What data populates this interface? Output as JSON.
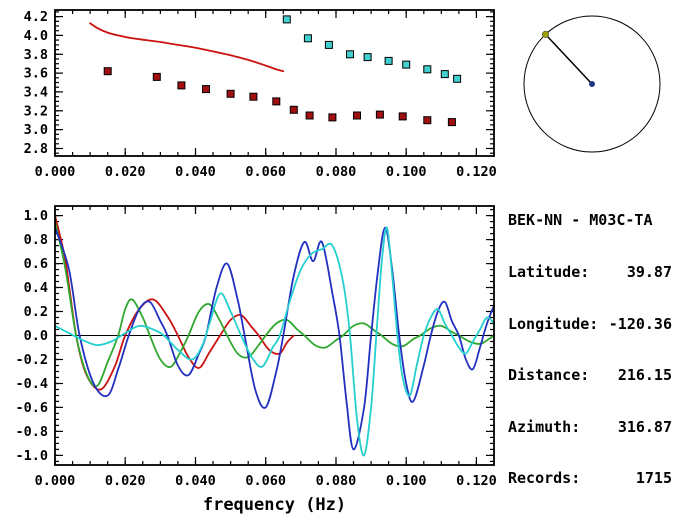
{
  "info": {
    "title": "BEK-NN - M03C-TA",
    "rows": [
      {
        "label": "Latitude:",
        "value": "39.87"
      },
      {
        "label": "Longitude:",
        "value": "-120.36"
      },
      {
        "label": "Distance:",
        "value": "216.15"
      },
      {
        "label": "Azimuth:",
        "value": "316.87"
      },
      {
        "label": "Records:",
        "value": "1715"
      }
    ]
  },
  "azimuth_diagram": {
    "azimuth_deg": 316.87,
    "circle_color": "#000000",
    "line_color": "#000000",
    "center_dot_color": "#223388",
    "edge_dot_color": "#a0a000"
  },
  "chart_data": [
    {
      "id": "dispersion",
      "type": "line",
      "title": "",
      "xlabel": "",
      "ylabel": "",
      "xlim": [
        0,
        0.125
      ],
      "ylim": [
        2.72,
        4.27
      ],
      "minor_x": 0.005,
      "minor_y": 0.05,
      "xticks": {
        "values": [
          0,
          0.02,
          0.04,
          0.06,
          0.08,
          0.1,
          0.12
        ],
        "labels": [
          "0.000",
          "0.020",
          "0.040",
          "0.060",
          "0.080",
          "0.100",
          "0.120"
        ]
      },
      "yticks": {
        "values": [
          4.2,
          4.0,
          3.8,
          3.6,
          3.4,
          3.2,
          3.0,
          2.8
        ],
        "labels": [
          "4.2",
          "4.0",
          "3.8",
          "3.6",
          "3.4",
          "3.2",
          "3.0",
          "2.8"
        ]
      },
      "series": [
        {
          "name": "reference-curve",
          "type": "line",
          "color": "#cc1111",
          "points": [
            [
              0.01,
              4.13
            ],
            [
              0.012,
              4.08
            ],
            [
              0.015,
              4.03
            ],
            [
              0.018,
              4.0
            ],
            [
              0.022,
              3.97
            ],
            [
              0.026,
              3.95
            ],
            [
              0.03,
              3.93
            ],
            [
              0.035,
              3.9
            ],
            [
              0.04,
              3.87
            ],
            [
              0.045,
              3.83
            ],
            [
              0.05,
              3.79
            ],
            [
              0.055,
              3.74
            ],
            [
              0.06,
              3.68
            ],
            [
              0.063,
              3.64
            ],
            [
              0.065,
              3.62
            ]
          ]
        },
        {
          "name": "dark-red-squares",
          "type": "squares",
          "color": "#a01010",
          "points": [
            [
              0.015,
              3.62
            ],
            [
              0.029,
              3.56
            ],
            [
              0.036,
              3.47
            ],
            [
              0.043,
              3.43
            ],
            [
              0.05,
              3.38
            ],
            [
              0.0565,
              3.35
            ],
            [
              0.063,
              3.3
            ],
            [
              0.068,
              3.21
            ],
            [
              0.0725,
              3.15
            ],
            [
              0.079,
              3.13
            ],
            [
              0.086,
              3.15
            ],
            [
              0.0925,
              3.16
            ],
            [
              0.099,
              3.14
            ],
            [
              0.106,
              3.1
            ],
            [
              0.113,
              3.08
            ]
          ]
        },
        {
          "name": "cyan-squares",
          "type": "squares",
          "color": "#40d0d0",
          "points": [
            [
              0.066,
              4.17
            ],
            [
              0.072,
              3.97
            ],
            [
              0.078,
              3.9
            ],
            [
              0.084,
              3.8
            ],
            [
              0.089,
              3.77
            ],
            [
              0.095,
              3.73
            ],
            [
              0.1,
              3.69
            ],
            [
              0.106,
              3.64
            ],
            [
              0.111,
              3.59
            ],
            [
              0.1145,
              3.54
            ]
          ]
        }
      ]
    },
    {
      "id": "waveforms",
      "type": "line",
      "title": "",
      "xlabel": "frequency (Hz)",
      "ylabel": "",
      "zero_line": true,
      "xlim": [
        0,
        0.125
      ],
      "ylim": [
        -1.08,
        1.08
      ],
      "minor_x": 0.005,
      "minor_y": 0.05,
      "xticks": {
        "values": [
          0,
          0.02,
          0.04,
          0.06,
          0.08,
          0.1,
          0.12
        ],
        "labels": [
          "0.000",
          "0.020",
          "0.040",
          "0.060",
          "0.080",
          "0.100",
          "0.120"
        ]
      },
      "yticks": {
        "values": [
          1.0,
          0.8,
          0.6,
          0.4,
          0.2,
          0.0,
          -0.2,
          -0.4,
          -0.6,
          -0.8,
          -1.0
        ],
        "labels": [
          "1.0",
          "0.8",
          "0.6",
          "0.4",
          "0.2",
          "0.0",
          "-0.2",
          "-0.4",
          "-0.6",
          "-0.8",
          "-1.0"
        ]
      },
      "series": [
        {
          "name": "trace-red",
          "type": "line",
          "color": "#cc1111",
          "points": [
            [
              0,
              1.0
            ],
            [
              0.003,
              0.62
            ],
            [
              0.006,
              0.0
            ],
            [
              0.009,
              -0.33
            ],
            [
              0.013,
              -0.45
            ],
            [
              0.017,
              -0.26
            ],
            [
              0.02,
              0.0
            ],
            [
              0.024,
              0.22
            ],
            [
              0.028,
              0.3
            ],
            [
              0.032,
              0.16
            ],
            [
              0.035,
              0.0
            ],
            [
              0.038,
              -0.18
            ],
            [
              0.041,
              -0.27
            ],
            [
              0.044,
              -0.14
            ],
            [
              0.047,
              0.0
            ],
            [
              0.05,
              0.13
            ],
            [
              0.053,
              0.17
            ],
            [
              0.056,
              0.07
            ],
            [
              0.058,
              0.0
            ],
            [
              0.061,
              -0.12
            ],
            [
              0.064,
              -0.15
            ],
            [
              0.066,
              -0.06
            ],
            [
              0.068,
              0.0
            ]
          ]
        },
        {
          "name": "trace-green",
          "type": "line",
          "color": "#2ea82e",
          "points": [
            [
              0,
              0.95
            ],
            [
              0.003,
              0.55
            ],
            [
              0.006,
              0.0
            ],
            [
              0.009,
              -0.32
            ],
            [
              0.012,
              -0.42
            ],
            [
              0.015,
              -0.22
            ],
            [
              0.018,
              0.0
            ],
            [
              0.02,
              0.22
            ],
            [
              0.022,
              0.3
            ],
            [
              0.025,
              0.15
            ],
            [
              0.027,
              0.0
            ],
            [
              0.03,
              -0.2
            ],
            [
              0.033,
              -0.26
            ],
            [
              0.036,
              -0.12
            ],
            [
              0.038,
              0.0
            ],
            [
              0.041,
              0.2
            ],
            [
              0.044,
              0.26
            ],
            [
              0.047,
              0.12
            ],
            [
              0.049,
              0.0
            ],
            [
              0.052,
              -0.15
            ],
            [
              0.055,
              -0.18
            ],
            [
              0.058,
              -0.08
            ],
            [
              0.06,
              0.0
            ],
            [
              0.063,
              0.1
            ],
            [
              0.066,
              0.13
            ],
            [
              0.069,
              0.05
            ],
            [
              0.071,
              0.0
            ],
            [
              0.074,
              -0.08
            ],
            [
              0.077,
              -0.1
            ],
            [
              0.08,
              -0.04
            ],
            [
              0.082,
              0.0
            ],
            [
              0.085,
              0.08
            ],
            [
              0.088,
              0.1
            ],
            [
              0.091,
              0.04
            ],
            [
              0.093,
              0.0
            ],
            [
              0.096,
              -0.07
            ],
            [
              0.099,
              -0.09
            ],
            [
              0.102,
              -0.03
            ],
            [
              0.104,
              0.0
            ],
            [
              0.107,
              0.06
            ],
            [
              0.11,
              0.08
            ],
            [
              0.113,
              0.03
            ],
            [
              0.115,
              0.0
            ],
            [
              0.118,
              -0.05
            ],
            [
              0.121,
              -0.07
            ],
            [
              0.1235,
              -0.03
            ],
            [
              0.125,
              0.0
            ]
          ]
        },
        {
          "name": "trace-blue",
          "type": "line",
          "color": "#2230c0",
          "points": [
            [
              0,
              0.9
            ],
            [
              0.004,
              0.55
            ],
            [
              0.007,
              0.0
            ],
            [
              0.011,
              -0.4
            ],
            [
              0.015,
              -0.5
            ],
            [
              0.018,
              -0.28
            ],
            [
              0.021,
              0.0
            ],
            [
              0.024,
              0.22
            ],
            [
              0.027,
              0.28
            ],
            [
              0.03,
              0.12
            ],
            [
              0.032,
              0.0
            ],
            [
              0.035,
              -0.25
            ],
            [
              0.038,
              -0.33
            ],
            [
              0.041,
              -0.15
            ],
            [
              0.043,
              0.0
            ],
            [
              0.046,
              0.4
            ],
            [
              0.049,
              0.6
            ],
            [
              0.052,
              0.3
            ],
            [
              0.054,
              0.0
            ],
            [
              0.057,
              -0.45
            ],
            [
              0.06,
              -0.6
            ],
            [
              0.063,
              -0.3
            ],
            [
              0.065,
              0.0
            ],
            [
              0.068,
              0.5
            ],
            [
              0.071,
              0.78
            ],
            [
              0.0735,
              0.62
            ],
            [
              0.076,
              0.78
            ],
            [
              0.079,
              0.35
            ],
            [
              0.081,
              0.0
            ],
            [
              0.083,
              -0.55
            ],
            [
              0.085,
              -0.95
            ],
            [
              0.088,
              -0.6
            ],
            [
              0.09,
              0.0
            ],
            [
              0.092,
              0.55
            ],
            [
              0.094,
              0.9
            ],
            [
              0.096,
              0.55
            ],
            [
              0.098,
              0.0
            ],
            [
              0.1,
              -0.4
            ],
            [
              0.102,
              -0.55
            ],
            [
              0.105,
              -0.25
            ],
            [
              0.107,
              0.0
            ],
            [
              0.109,
              0.2
            ],
            [
              0.111,
              0.28
            ],
            [
              0.113,
              0.12
            ],
            [
              0.115,
              0.0
            ],
            [
              0.117,
              -0.2
            ],
            [
              0.119,
              -0.28
            ],
            [
              0.121,
              -0.1
            ],
            [
              0.123,
              0.1
            ],
            [
              0.125,
              0.25
            ]
          ]
        },
        {
          "name": "trace-cyan",
          "type": "line",
          "color": "#25cfcf",
          "points": [
            [
              0,
              0.08
            ],
            [
              0.004,
              0.02
            ],
            [
              0.008,
              -0.04
            ],
            [
              0.012,
              -0.08
            ],
            [
              0.016,
              -0.05
            ],
            [
              0.02,
              0.02
            ],
            [
              0.024,
              0.08
            ],
            [
              0.028,
              0.05
            ],
            [
              0.031,
              0.0
            ],
            [
              0.035,
              -0.12
            ],
            [
              0.039,
              -0.2
            ],
            [
              0.042,
              -0.08
            ],
            [
              0.044,
              0.1
            ],
            [
              0.047,
              0.35
            ],
            [
              0.05,
              0.2
            ],
            [
              0.053,
              0.0
            ],
            [
              0.056,
              -0.18
            ],
            [
              0.059,
              -0.26
            ],
            [
              0.062,
              -0.1
            ],
            [
              0.064,
              0.0
            ],
            [
              0.067,
              0.3
            ],
            [
              0.07,
              0.55
            ],
            [
              0.073,
              0.68
            ],
            [
              0.076,
              0.72
            ],
            [
              0.079,
              0.75
            ],
            [
              0.082,
              0.45
            ],
            [
              0.084,
              0.0
            ],
            [
              0.086,
              -0.7
            ],
            [
              0.088,
              -1.0
            ],
            [
              0.09,
              -0.6
            ],
            [
              0.0915,
              0.0
            ],
            [
              0.093,
              0.6
            ],
            [
              0.0945,
              0.9
            ],
            [
              0.096,
              0.5
            ],
            [
              0.0975,
              0.0
            ],
            [
              0.099,
              -0.35
            ],
            [
              0.101,
              -0.5
            ],
            [
              0.103,
              -0.25
            ],
            [
              0.105,
              0.0
            ],
            [
              0.107,
              0.15
            ],
            [
              0.109,
              0.22
            ],
            [
              0.111,
              0.1
            ],
            [
              0.113,
              0.0
            ],
            [
              0.115,
              -0.1
            ],
            [
              0.117,
              -0.15
            ],
            [
              0.119,
              -0.05
            ],
            [
              0.121,
              0.05
            ],
            [
              0.123,
              0.15
            ],
            [
              0.125,
              0.1
            ]
          ]
        }
      ]
    }
  ]
}
